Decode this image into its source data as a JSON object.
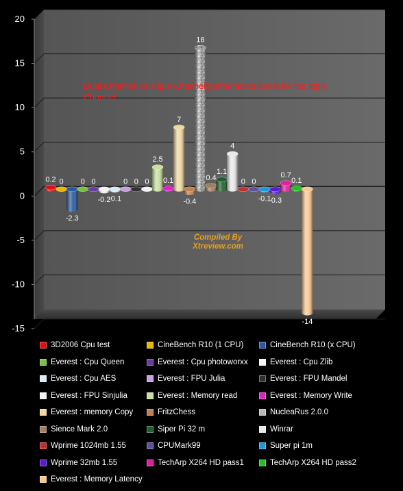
{
  "chart_data": {
    "type": "bar",
    "title": "",
    "xlabel": "",
    "ylabel": "",
    "ylim": [
      -15,
      20
    ],
    "yticks": [
      "20",
      "15",
      "10",
      "5",
      "0",
      "-5",
      "-10",
      "-15"
    ],
    "grid": true,
    "legend_position": "bottom",
    "annotations": [
      {
        "text": "Dual Channel Vs Triple Channel performance boost for the triple Channel",
        "color": "#ff1a1a"
      },
      {
        "text_line1": "Compiled By",
        "text_line2": "Xtreview.com",
        "color": "#e8a020"
      }
    ],
    "series": [
      {
        "name": "3D2006 Cpu test",
        "value": 0.2,
        "label": "0.2",
        "color": "#e01010"
      },
      {
        "name": "CineBench R10 (1 CPU)",
        "value": 0,
        "label": "0",
        "color": "#e8b800"
      },
      {
        "name": "CineBench R10 (x CPU)",
        "value": -2.3,
        "label": "-2.3",
        "color": "#2a5aa0"
      },
      {
        "name": "Everest : Cpu Queen",
        "value": 0,
        "label": "0",
        "color": "#7ac043"
      },
      {
        "name": "Everest : Cpu photoworxx",
        "value": 0,
        "label": "0",
        "color": "#6a3aa0"
      },
      {
        "name": "Everest : Cpu  Zlib",
        "value": -0.2,
        "label": "-0.2",
        "color": "#f4f4f4"
      },
      {
        "name": "Everest : Cpu AES",
        "value": -0.1,
        "label": "-0.1",
        "color": "#d8eaf4"
      },
      {
        "name": "Everest : FPU Julia",
        "value": 0,
        "label": "0",
        "color": "#c6a0e0"
      },
      {
        "name": "Everest : FPU Mandel",
        "value": 0,
        "label": "0",
        "color": "#303030"
      },
      {
        "name": "Everest : FPU Sinjulia",
        "value": 0,
        "label": "0",
        "color": "#f2f2f2"
      },
      {
        "name": "Everest : Memory read",
        "value": 2.5,
        "label": "2.5",
        "color": "#c8e0a0"
      },
      {
        "name": "Everest : Memory Write",
        "value": 0.1,
        "label": "0.1",
        "color": "#e020c8"
      },
      {
        "name": "Everest : memory Copy",
        "value": 7,
        "label": "7",
        "color": "#f0d8a0"
      },
      {
        "name": "FritzChess",
        "value": -0.4,
        "label": "-0.4",
        "color": "#c08050"
      },
      {
        "name": "NucleaRus 2.0.0",
        "value": 16,
        "label": "16",
        "color": "#b8b8b8"
      },
      {
        "name": "Sience Mark 2.0",
        "value": 0.4,
        "label": "0.4",
        "color": "#a08060"
      },
      {
        "name": "Siper Pi 32 m",
        "value": 1.1,
        "label": "1.1",
        "color": "#206030"
      },
      {
        "name": "Winrar",
        "value": 4,
        "label": "4",
        "color": "#e8e8e8"
      },
      {
        "name": "Wprime 1024mb 1.55",
        "value": 0,
        "label": "0",
        "color": "#c03030"
      },
      {
        "name": "CPUMark99",
        "value": 0,
        "label": "0",
        "color": "#6050a0"
      },
      {
        "name": "Super pi 1m",
        "value": -0.1,
        "label": "-0.1",
        "color": "#1a9ad8"
      },
      {
        "name": "Wprime 32mb 1.55",
        "value": -0.3,
        "label": "-0.3",
        "color": "#5a1ad8"
      },
      {
        "name": "TechArp X264 HD pass1",
        "value": 0.7,
        "label": "0.7",
        "color": "#e020a0"
      },
      {
        "name": "TechArp X264 HD pass2",
        "value": 0.1,
        "label": "0.1",
        "color": "#20c020"
      },
      {
        "name": "Everest : Memory Latency",
        "value": -14,
        "label": "-14",
        "color": "#f8c890"
      }
    ]
  }
}
